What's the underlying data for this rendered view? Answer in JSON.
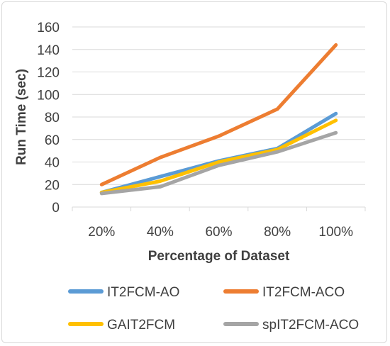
{
  "chart_data": {
    "type": "line",
    "title": "",
    "xlabel": "Percentage of Dataset",
    "ylabel": "Run Time (sec)",
    "categories": [
      "20%",
      "40%",
      "60%",
      "80%",
      "100%"
    ],
    "ylim": [
      0,
      160
    ],
    "yticks": [
      0,
      20,
      40,
      60,
      80,
      100,
      120,
      140,
      160
    ],
    "grid": true,
    "legend_position": "bottom",
    "series": [
      {
        "name": "IT2FCM-AO",
        "color": "#5b9bd5",
        "values": [
          13,
          27,
          41,
          52,
          83
        ]
      },
      {
        "name": "IT2FCM-ACO",
        "color": "#ed7d31",
        "values": [
          20,
          44,
          63,
          87,
          144
        ]
      },
      {
        "name": "GAIT2FCM",
        "color": "#ffc000",
        "values": [
          13,
          23,
          40,
          51,
          77
        ]
      },
      {
        "name": "spIT2FCM-ACO",
        "color": "#a5a5a5",
        "values": [
          12,
          18,
          37,
          49,
          66
        ]
      }
    ]
  }
}
